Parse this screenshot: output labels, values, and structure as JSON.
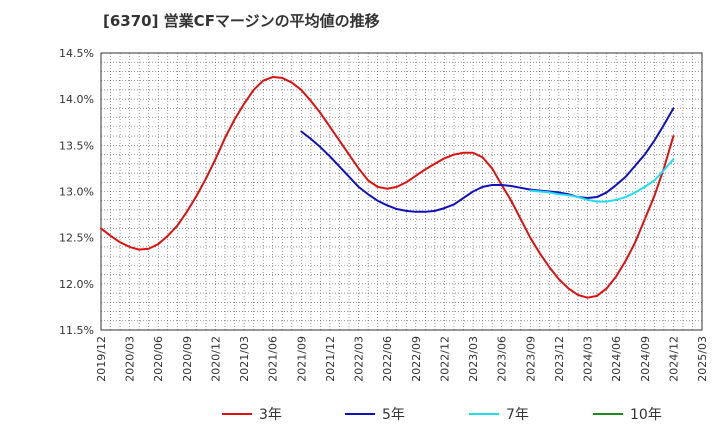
{
  "chart_data": {
    "type": "line",
    "title": "[6370]  営業CFマージンの平均値の推移",
    "xlabel": "",
    "ylabel": "",
    "y_unit": "%",
    "ylim": [
      11.5,
      14.5
    ],
    "y_ticks": [
      "11.5%",
      "12.0%",
      "12.5%",
      "13.0%",
      "13.5%",
      "14.0%",
      "14.5%"
    ],
    "x_ticks": [
      "2019/12",
      "2020/03",
      "2020/06",
      "2020/09",
      "2020/12",
      "2021/03",
      "2021/06",
      "2021/09",
      "2021/12",
      "2022/03",
      "2022/06",
      "2022/09",
      "2022/12",
      "2023/03",
      "2023/06",
      "2023/09",
      "2023/12",
      "2024/03",
      "2024/06",
      "2024/09",
      "2024/12",
      "2025/03"
    ],
    "grid": true,
    "legend_position": "bottom",
    "series": [
      {
        "name": "3年",
        "color": "#dd1111",
        "points": [
          [
            "2019/12",
            12.6
          ],
          [
            "2020/01",
            12.52
          ],
          [
            "2020/02",
            12.45
          ],
          [
            "2020/03",
            12.4
          ],
          [
            "2020/04",
            12.37
          ],
          [
            "2020/05",
            12.38
          ],
          [
            "2020/06",
            12.43
          ],
          [
            "2020/07",
            12.52
          ],
          [
            "2020/08",
            12.63
          ],
          [
            "2020/09",
            12.78
          ],
          [
            "2020/10",
            12.95
          ],
          [
            "2020/11",
            13.14
          ],
          [
            "2020/12",
            13.35
          ],
          [
            "2021/01",
            13.58
          ],
          [
            "2021/02",
            13.78
          ],
          [
            "2021/03",
            13.95
          ],
          [
            "2021/04",
            14.1
          ],
          [
            "2021/05",
            14.2
          ],
          [
            "2021/06",
            14.24
          ],
          [
            "2021/07",
            14.23
          ],
          [
            "2021/08",
            14.18
          ],
          [
            "2021/09",
            14.1
          ],
          [
            "2021/10",
            13.98
          ],
          [
            "2021/11",
            13.85
          ],
          [
            "2021/12",
            13.7
          ],
          [
            "2022/01",
            13.55
          ],
          [
            "2022/02",
            13.4
          ],
          [
            "2022/03",
            13.25
          ],
          [
            "2022/04",
            13.12
          ],
          [
            "2022/05",
            13.05
          ],
          [
            "2022/06",
            13.03
          ],
          [
            "2022/07",
            13.05
          ],
          [
            "2022/08",
            13.1
          ],
          [
            "2022/09",
            13.17
          ],
          [
            "2022/10",
            13.24
          ],
          [
            "2022/11",
            13.3
          ],
          [
            "2022/12",
            13.36
          ],
          [
            "2023/01",
            13.4
          ],
          [
            "2023/02",
            13.42
          ],
          [
            "2023/03",
            13.42
          ],
          [
            "2023/04",
            13.37
          ],
          [
            "2023/05",
            13.25
          ],
          [
            "2023/06",
            13.07
          ],
          [
            "2023/07",
            12.9
          ],
          [
            "2023/08",
            12.7
          ],
          [
            "2023/09",
            12.5
          ],
          [
            "2023/10",
            12.33
          ],
          [
            "2023/11",
            12.18
          ],
          [
            "2023/12",
            12.05
          ],
          [
            "2024/01",
            11.95
          ],
          [
            "2024/02",
            11.88
          ],
          [
            "2024/03",
            11.85
          ],
          [
            "2024/04",
            11.87
          ],
          [
            "2024/05",
            11.95
          ],
          [
            "2024/06",
            12.08
          ],
          [
            "2024/07",
            12.25
          ],
          [
            "2024/08",
            12.45
          ],
          [
            "2024/09",
            12.7
          ],
          [
            "2024/10",
            12.95
          ],
          [
            "2024/11",
            13.25
          ],
          [
            "2024/12",
            13.6
          ]
        ]
      },
      {
        "name": "5年",
        "color": "#1111bb",
        "points": [
          [
            "2021/09",
            13.65
          ],
          [
            "2021/10",
            13.57
          ],
          [
            "2021/11",
            13.48
          ],
          [
            "2021/12",
            13.38
          ],
          [
            "2022/01",
            13.27
          ],
          [
            "2022/02",
            13.16
          ],
          [
            "2022/03",
            13.05
          ],
          [
            "2022/04",
            12.97
          ],
          [
            "2022/05",
            12.9
          ],
          [
            "2022/06",
            12.85
          ],
          [
            "2022/07",
            12.81
          ],
          [
            "2022/08",
            12.79
          ],
          [
            "2022/09",
            12.78
          ],
          [
            "2022/10",
            12.78
          ],
          [
            "2022/11",
            12.79
          ],
          [
            "2022/12",
            12.82
          ],
          [
            "2023/01",
            12.86
          ],
          [
            "2023/02",
            12.93
          ],
          [
            "2023/03",
            13.0
          ],
          [
            "2023/04",
            13.05
          ],
          [
            "2023/05",
            13.07
          ],
          [
            "2023/06",
            13.07
          ],
          [
            "2023/07",
            13.06
          ],
          [
            "2023/08",
            13.04
          ],
          [
            "2023/09",
            13.02
          ],
          [
            "2023/10",
            13.01
          ],
          [
            "2023/11",
            13.0
          ],
          [
            "2023/12",
            12.99
          ],
          [
            "2024/01",
            12.97
          ],
          [
            "2024/02",
            12.94
          ],
          [
            "2024/03",
            12.93
          ],
          [
            "2024/04",
            12.94
          ],
          [
            "2024/05",
            12.99
          ],
          [
            "2024/06",
            13.07
          ],
          [
            "2024/07",
            13.16
          ],
          [
            "2024/08",
            13.28
          ],
          [
            "2024/09",
            13.4
          ],
          [
            "2024/10",
            13.55
          ],
          [
            "2024/11",
            13.72
          ],
          [
            "2024/12",
            13.9
          ]
        ]
      },
      {
        "name": "7年",
        "color": "#22ddee",
        "points": [
          [
            "2023/09",
            13.01
          ],
          [
            "2023/10",
            13.0
          ],
          [
            "2023/11",
            12.99
          ],
          [
            "2023/12",
            12.97
          ],
          [
            "2024/01",
            12.96
          ],
          [
            "2024/02",
            12.94
          ],
          [
            "2024/03",
            12.91
          ],
          [
            "2024/04",
            12.89
          ],
          [
            "2024/05",
            12.89
          ],
          [
            "2024/06",
            12.91
          ],
          [
            "2024/07",
            12.94
          ],
          [
            "2024/08",
            12.99
          ],
          [
            "2024/09",
            13.05
          ],
          [
            "2024/10",
            13.12
          ],
          [
            "2024/11",
            13.23
          ],
          [
            "2024/12",
            13.35
          ]
        ]
      },
      {
        "name": "10年",
        "color": "#228822",
        "points": []
      }
    ]
  }
}
